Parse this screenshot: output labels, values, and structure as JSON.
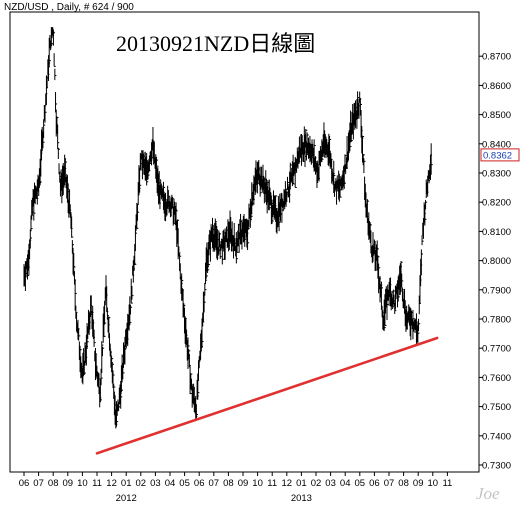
{
  "header": {
    "symbol": "NZD/USD",
    "interval": "Daily",
    "bars": "# 624 / 900",
    "text": "NZD/USD , Daily, # 624 / 900"
  },
  "watermark": "Joe",
  "chart_data": {
    "type": "line",
    "title": "20130921NZD日線圖",
    "xlabel": "",
    "ylabel": "",
    "ylim": [
      0.73,
      0.88
    ],
    "yticks": [
      0.73,
      0.74,
      0.75,
      0.76,
      0.77,
      0.78,
      0.79,
      0.8,
      0.81,
      0.82,
      0.83,
      0.84,
      0.85,
      0.86,
      0.87
    ],
    "ytick_labels": [
      "0.7300",
      "0.7400",
      "0.7500",
      "0.7600",
      "0.7700",
      "0.7800",
      "0.7900",
      "0.8000",
      "0.8100",
      "0.8200",
      "0.8300",
      "0.8400",
      "0.8500",
      "0.8600",
      "0.8700"
    ],
    "xtick_labels": [
      "06",
      "07",
      "08",
      "09",
      "10",
      "11",
      "12",
      "01",
      "02",
      "03",
      "04",
      "05",
      "06",
      "07",
      "08",
      "09",
      "10",
      "11",
      "12",
      "01",
      "02",
      "03",
      "04",
      "05",
      "06",
      "07",
      "08",
      "09",
      "10",
      "11"
    ],
    "year_labels": [
      {
        "label": "2012",
        "month_index": 7
      },
      {
        "label": "2013",
        "month_index": 19
      }
    ],
    "months": [
      "2011-06",
      "2011-07",
      "2011-08",
      "2011-09",
      "2011-10",
      "2011-11",
      "2011-12",
      "2012-01",
      "2012-02",
      "2012-03",
      "2012-04",
      "2012-05",
      "2012-06",
      "2012-07",
      "2012-08",
      "2012-09",
      "2012-10",
      "2012-11",
      "2012-12",
      "2013-01",
      "2013-02",
      "2013-03",
      "2013-04",
      "2013-05",
      "2013-06",
      "2013-07",
      "2013-08",
      "2013-09",
      "2013-10",
      "2013-11"
    ],
    "series": [
      {
        "style": "daily-hlc-bars",
        "color": "#000000",
        "x_month_index": [
          0.0,
          0.3,
          0.6,
          1.0,
          1.4,
          1.8,
          2.0,
          2.2,
          2.5,
          2.8,
          3.2,
          3.6,
          4.0,
          4.3,
          4.6,
          4.9,
          5.2,
          5.6,
          6.0,
          6.3,
          6.6,
          7.0,
          7.3,
          7.6,
          8.0,
          8.4,
          8.8,
          9.2,
          9.6,
          10.0,
          10.4,
          10.8,
          11.2,
          11.5,
          11.8,
          12.1,
          12.5,
          12.9,
          13.3,
          13.7,
          14.1,
          14.5,
          14.9,
          15.3,
          15.7,
          16.1,
          16.5,
          16.9,
          17.3,
          17.7,
          18.1,
          18.5,
          18.9,
          19.3,
          19.7,
          20.1,
          20.5,
          20.9,
          21.3,
          21.7,
          22.1,
          22.4,
          22.7,
          23.0,
          23.4,
          23.8,
          24.2,
          24.6,
          25.0,
          25.4,
          25.8,
          26.2,
          26.6,
          27.0,
          27.3,
          27.6,
          27.9
        ],
        "values": [
          0.795,
          0.8,
          0.82,
          0.825,
          0.85,
          0.875,
          0.88,
          0.85,
          0.825,
          0.83,
          0.815,
          0.78,
          0.76,
          0.772,
          0.785,
          0.765,
          0.755,
          0.79,
          0.765,
          0.745,
          0.755,
          0.775,
          0.785,
          0.805,
          0.835,
          0.83,
          0.84,
          0.825,
          0.82,
          0.82,
          0.815,
          0.79,
          0.77,
          0.755,
          0.75,
          0.77,
          0.8,
          0.81,
          0.805,
          0.805,
          0.81,
          0.805,
          0.81,
          0.81,
          0.825,
          0.83,
          0.825,
          0.82,
          0.815,
          0.82,
          0.825,
          0.83,
          0.838,
          0.84,
          0.838,
          0.83,
          0.84,
          0.838,
          0.825,
          0.825,
          0.835,
          0.845,
          0.85,
          0.855,
          0.82,
          0.805,
          0.8,
          0.78,
          0.79,
          0.785,
          0.795,
          0.78,
          0.78,
          0.775,
          0.81,
          0.825,
          0.8362
        ],
        "range_halfwidth": 0.004
      },
      {
        "style": "trendline",
        "color": "#e03030",
        "x_month_index": [
          5.0,
          28.3
        ],
        "values": [
          0.734,
          0.7735
        ]
      }
    ],
    "last_price": 0.8362,
    "last_price_label": "0.8362",
    "grid": false,
    "legend": "none"
  }
}
